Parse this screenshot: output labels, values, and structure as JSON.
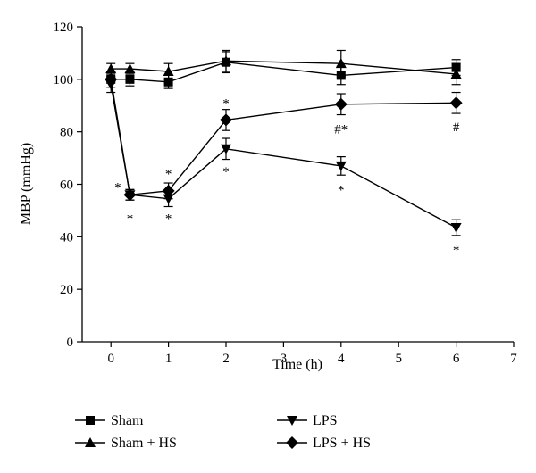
{
  "chart_data": {
    "type": "line",
    "xlabel": "Time (h)",
    "ylabel": "MBP (mmHg)",
    "xlim": [
      -0.5,
      7
    ],
    "ylim": [
      0,
      120
    ],
    "xticks": [
      0,
      1,
      2,
      3,
      4,
      5,
      6,
      7
    ],
    "yticks": [
      0,
      20,
      40,
      60,
      80,
      100,
      120
    ],
    "grid": false,
    "legend_position": "bottom",
    "series": [
      {
        "name": "Sham",
        "marker": "square",
        "x": [
          0,
          0.33,
          1,
          2,
          4,
          6
        ],
        "y": [
          100,
          100,
          99,
          106.5,
          101.5,
          104.5
        ],
        "error": [
          3,
          2.5,
          2.5,
          4,
          3.5,
          3
        ]
      },
      {
        "name": "Sham + HS",
        "marker": "triangle-up",
        "x": [
          0,
          0.33,
          1,
          2,
          4,
          6
        ],
        "y": [
          104,
          104,
          103,
          107,
          106,
          102
        ],
        "error": [
          2,
          2,
          3,
          4,
          5,
          4
        ]
      },
      {
        "name": "LPS",
        "marker": "triangle-down",
        "x": [
          0,
          0.33,
          1,
          2,
          4,
          6
        ],
        "y": [
          98,
          56,
          54.5,
          73.5,
          67,
          43.5
        ],
        "error": [
          3,
          2,
          3,
          4,
          3.5,
          3
        ]
      },
      {
        "name": "LPS + HS",
        "marker": "diamond",
        "x": [
          0,
          0.33,
          1,
          2,
          4,
          6
        ],
        "y": [
          100,
          56,
          57.5,
          84.5,
          90.5,
          91
        ],
        "error": [
          3,
          2,
          3,
          4,
          4,
          4
        ]
      }
    ],
    "annotations": [
      {
        "text": "*",
        "x": 0.12,
        "y": 59
      },
      {
        "text": "*",
        "x": 0.33,
        "y": 47
      },
      {
        "text": "*",
        "x": 1,
        "y": 64
      },
      {
        "text": "*",
        "x": 1,
        "y": 47
      },
      {
        "text": "*",
        "x": 2,
        "y": 91
      },
      {
        "text": "*",
        "x": 2,
        "y": 65
      },
      {
        "text": "#*",
        "x": 4,
        "y": 81
      },
      {
        "text": "*",
        "x": 4,
        "y": 58
      },
      {
        "text": "#",
        "x": 6,
        "y": 82
      },
      {
        "text": "*",
        "x": 6,
        "y": 35
      }
    ]
  }
}
